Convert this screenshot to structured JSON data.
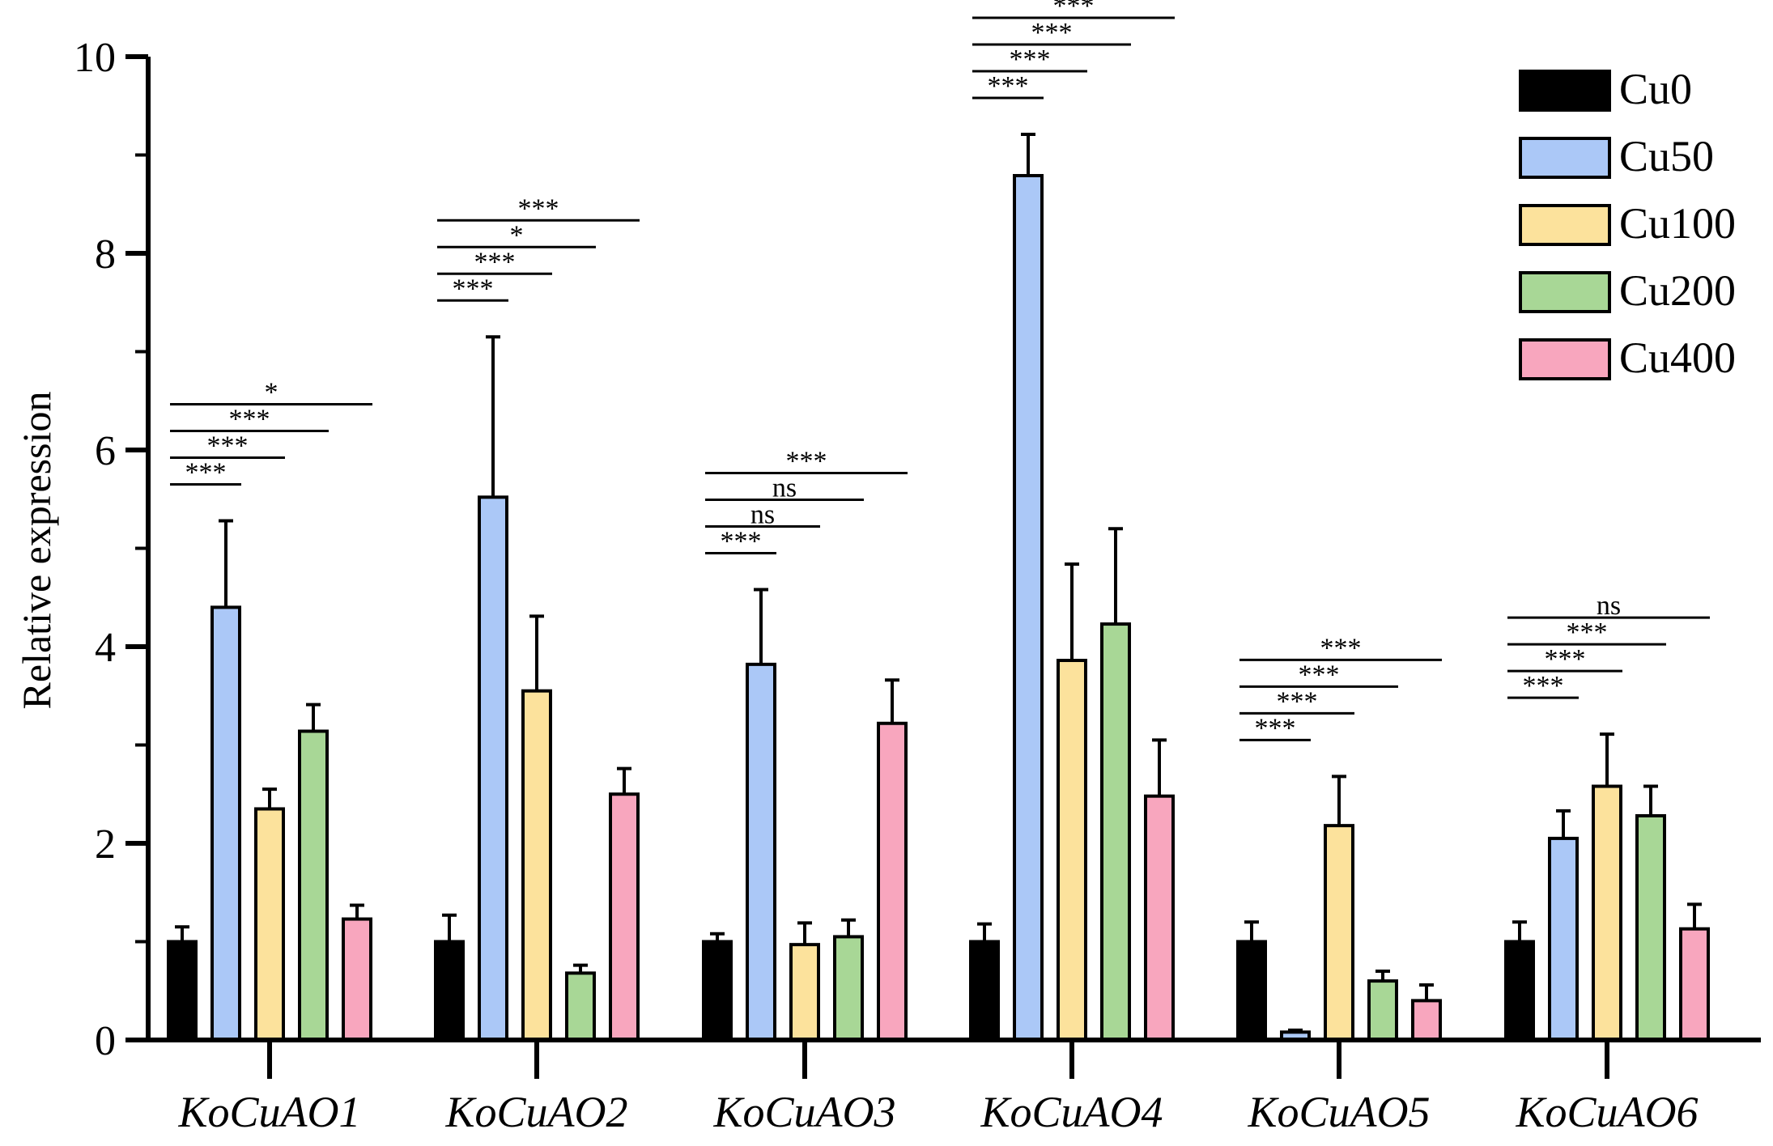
{
  "chart_data": {
    "type": "bar",
    "title": "",
    "xlabel": "",
    "ylabel": "Relative expression",
    "ylim": [
      0,
      10
    ],
    "yticks": [
      0,
      2,
      4,
      6,
      8,
      10
    ],
    "categories": [
      "KoCuAO1",
      "KoCuAO2",
      "KoCuAO3",
      "KoCuAO4",
      "KoCuAO5",
      "KoCuAO6"
    ],
    "series": [
      {
        "name": "Cu0",
        "color": "#000000",
        "values": [
          1.0,
          1.0,
          1.0,
          1.0,
          1.0,
          1.0
        ],
        "errors": [
          0.15,
          0.27,
          0.08,
          0.18,
          0.2,
          0.2
        ]
      },
      {
        "name": "Cu50",
        "color": "#abc8f7",
        "values": [
          4.4,
          5.52,
          3.82,
          8.79,
          0.08,
          2.05
        ],
        "errors": [
          0.88,
          1.63,
          0.76,
          0.42,
          0.02,
          0.28
        ]
      },
      {
        "name": "Cu100",
        "color": "#fce29c",
        "values": [
          2.35,
          3.55,
          0.97,
          3.86,
          2.18,
          2.58
        ],
        "errors": [
          0.2,
          0.76,
          0.22,
          0.98,
          0.5,
          0.53
        ]
      },
      {
        "name": "Cu200",
        "color": "#a8d796",
        "values": [
          3.14,
          0.68,
          1.05,
          4.23,
          0.6,
          2.28
        ],
        "errors": [
          0.27,
          0.08,
          0.17,
          0.97,
          0.1,
          0.3
        ]
      },
      {
        "name": "Cu400",
        "color": "#f8a6be",
        "values": [
          1.23,
          2.5,
          3.22,
          2.48,
          0.4,
          1.13
        ],
        "errors": [
          0.14,
          0.26,
          0.44,
          0.57,
          0.16,
          0.25
        ]
      }
    ],
    "significance": [
      {
        "labels": [
          "***",
          "***",
          "***",
          "*"
        ]
      },
      {
        "labels": [
          "***",
          "***",
          "*",
          "***"
        ]
      },
      {
        "labels": [
          "***",
          "ns",
          "ns",
          "***"
        ]
      },
      {
        "labels": [
          "***",
          "***",
          "***",
          "***"
        ]
      },
      {
        "labels": [
          "***",
          "***",
          "***",
          "***"
        ]
      },
      {
        "labels": [
          "***",
          "***",
          "***",
          "ns"
        ]
      }
    ],
    "legend_position": "top-right"
  }
}
